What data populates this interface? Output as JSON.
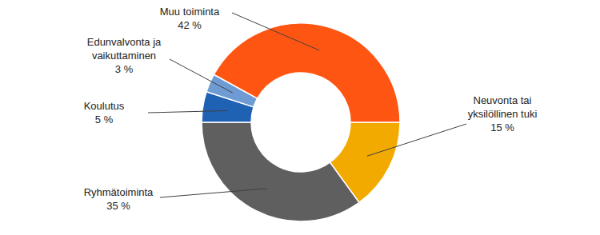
{
  "chart_data": {
    "type": "donut",
    "categories": [
      "Neuvonta tai yksilöllinen tuki",
      "Ryhmätoiminta",
      "Koulutus",
      "Edunvalvonta ja vaikuttaminen",
      "Muu toiminta"
    ],
    "values": [
      15,
      35,
      5,
      3,
      42
    ],
    "value_labels": [
      "15 %",
      "35 %",
      "5 %",
      "3 %",
      "42 %"
    ],
    "colors": [
      "#f2aa00",
      "#5f5f5f",
      "#1f62b4",
      "#6e9bd3",
      "#ff5512"
    ],
    "data_labels": true
  }
}
